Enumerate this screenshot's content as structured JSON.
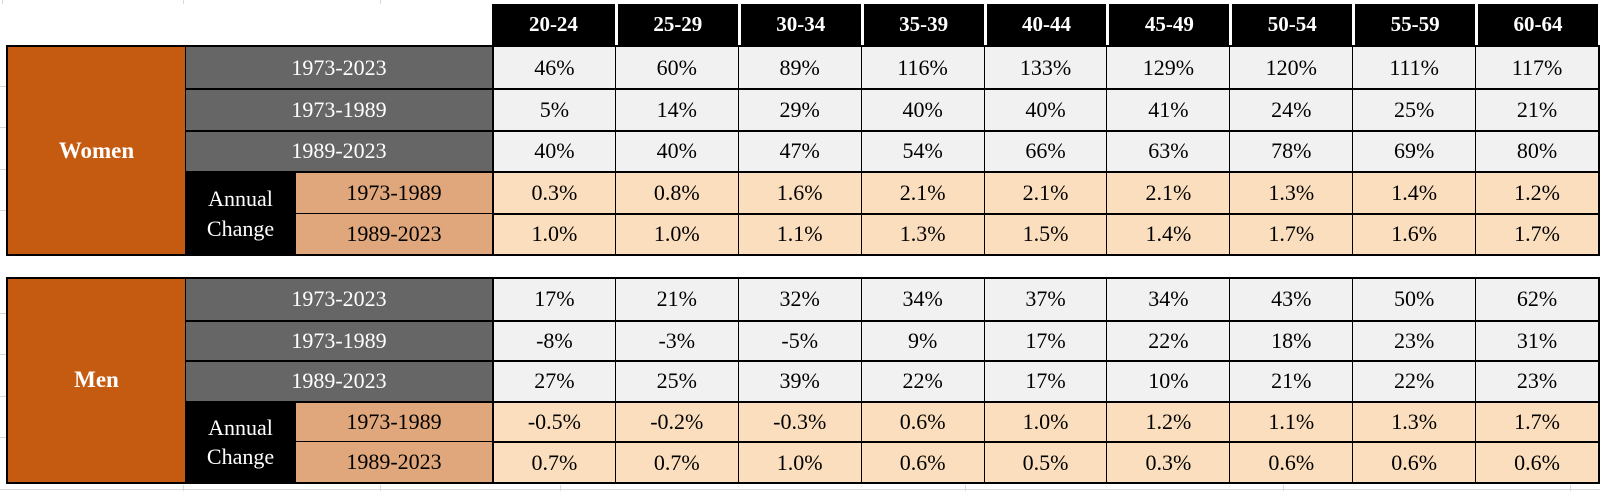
{
  "colors": {
    "orange": "#C55A11",
    "gray": "#666666",
    "black": "#000000",
    "tan": "#DFA77B",
    "peach": "#FBDEBD",
    "cell_gray": "#F1F1F1",
    "grid_line": "#D8D8D8"
  },
  "labels": {
    "annual_change_line1": "Annual",
    "annual_change_line2": "Change"
  },
  "chart_data": {
    "type": "table",
    "columns": [
      "20-24",
      "25-29",
      "30-34",
      "35-39",
      "40-44",
      "45-49",
      "50-54",
      "55-59",
      "60-64"
    ],
    "sections": [
      {
        "group": "Women",
        "rows": [
          {
            "label": "1973-2023",
            "kind": "period",
            "values": [
              "46%",
              "60%",
              "89%",
              "116%",
              "133%",
              "129%",
              "120%",
              "111%",
              "117%"
            ]
          },
          {
            "label": "1973-1989",
            "kind": "period",
            "values": [
              "5%",
              "14%",
              "29%",
              "40%",
              "40%",
              "41%",
              "24%",
              "25%",
              "21%"
            ]
          },
          {
            "label": "1989-2023",
            "kind": "period",
            "values": [
              "40%",
              "40%",
              "47%",
              "54%",
              "66%",
              "63%",
              "78%",
              "69%",
              "80%"
            ]
          },
          {
            "label": "1973-1989",
            "kind": "annual-change",
            "values": [
              "0.3%",
              "0.8%",
              "1.6%",
              "2.1%",
              "2.1%",
              "2.1%",
              "1.3%",
              "1.4%",
              "1.2%"
            ]
          },
          {
            "label": "1989-2023",
            "kind": "annual-change",
            "values": [
              "1.0%",
              "1.0%",
              "1.1%",
              "1.3%",
              "1.5%",
              "1.4%",
              "1.7%",
              "1.6%",
              "1.7%"
            ]
          }
        ]
      },
      {
        "group": "Men",
        "rows": [
          {
            "label": "1973-2023",
            "kind": "period",
            "values": [
              "17%",
              "21%",
              "32%",
              "34%",
              "37%",
              "34%",
              "43%",
              "50%",
              "62%"
            ]
          },
          {
            "label": "1973-1989",
            "kind": "period",
            "values": [
              "-8%",
              "-3%",
              "-5%",
              "9%",
              "17%",
              "22%",
              "18%",
              "23%",
              "31%"
            ]
          },
          {
            "label": "1989-2023",
            "kind": "period",
            "values": [
              "27%",
              "25%",
              "39%",
              "22%",
              "17%",
              "10%",
              "21%",
              "22%",
              "23%"
            ]
          },
          {
            "label": "1973-1989",
            "kind": "annual-change",
            "values": [
              "-0.5%",
              "-0.2%",
              "-0.3%",
              "0.6%",
              "1.0%",
              "1.2%",
              "1.1%",
              "1.3%",
              "1.7%"
            ]
          },
          {
            "label": "1989-2023",
            "kind": "annual-change",
            "values": [
              "0.7%",
              "0.7%",
              "1.0%",
              "0.6%",
              "0.5%",
              "0.3%",
              "0.6%",
              "0.6%",
              "0.6%"
            ]
          }
        ]
      }
    ]
  }
}
